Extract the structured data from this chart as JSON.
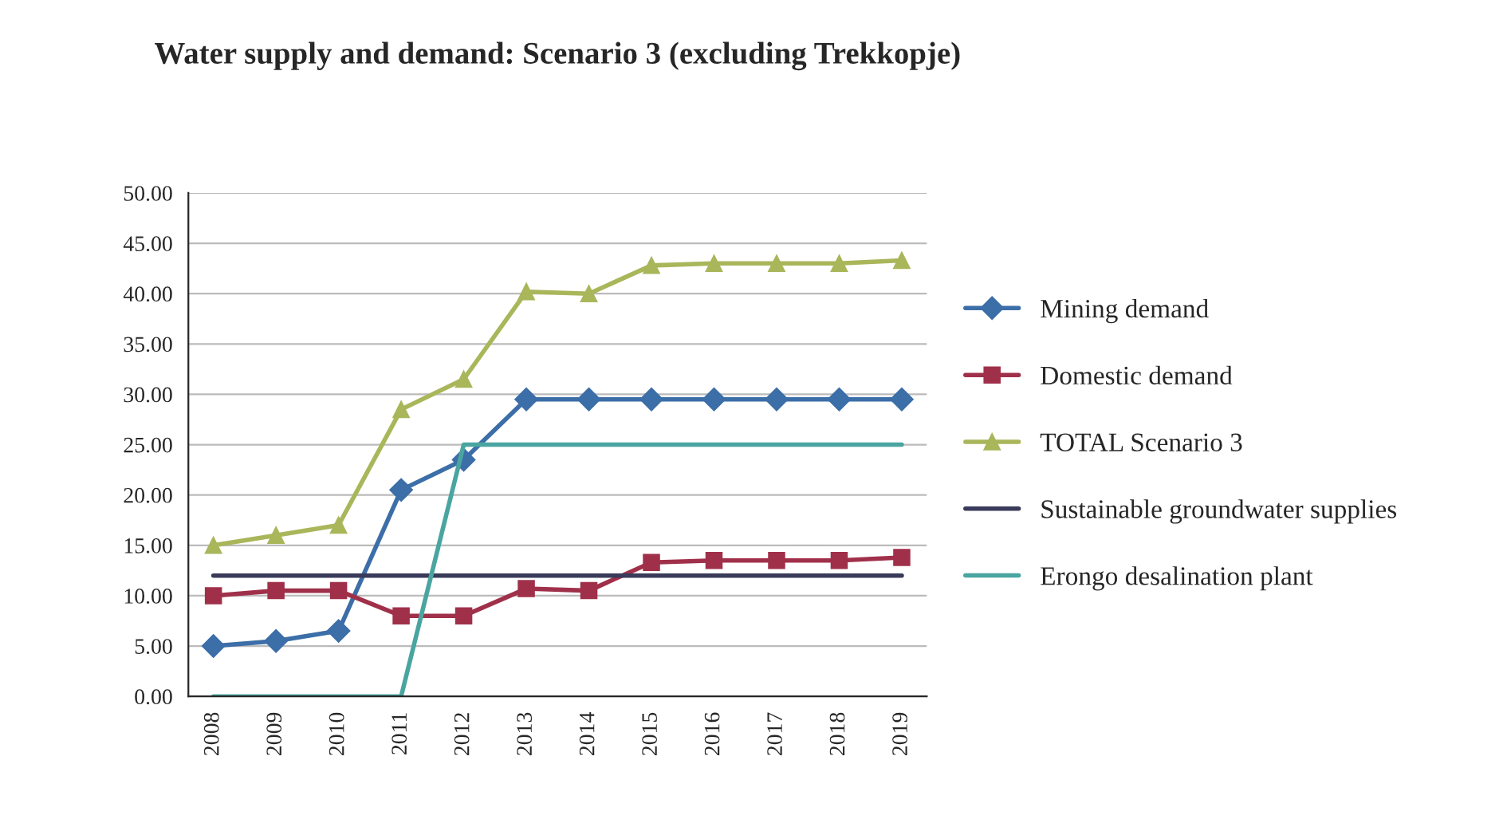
{
  "chart_data": {
    "type": "line",
    "title": "Water supply and demand: Scenario 3 (excluding Trekkopje)",
    "categories": [
      "2008",
      "2009",
      "2010",
      "2011",
      "2012",
      "2013",
      "2014",
      "2015",
      "2016",
      "2017",
      "2018",
      "2019"
    ],
    "series": [
      {
        "name": "Mining demand",
        "color": "#3c6ea8",
        "marker": "diamond",
        "values": [
          5,
          5.5,
          6.5,
          20.5,
          23.5,
          29.5,
          29.5,
          29.5,
          29.5,
          29.5,
          29.5,
          29.5
        ]
      },
      {
        "name": "Domestic demand",
        "color": "#a0304a",
        "marker": "square",
        "values": [
          10,
          10.5,
          10.5,
          8,
          8,
          10.7,
          10.5,
          13.3,
          13.5,
          13.5,
          13.5,
          13.8
        ]
      },
      {
        "name": "TOTAL Scenario 3",
        "color": "#a9b65a",
        "marker": "triangle",
        "values": [
          15,
          16,
          17,
          28.5,
          31.5,
          40.2,
          40,
          42.8,
          43,
          43,
          43,
          43.3
        ]
      },
      {
        "name": "Sustainable groundwater supplies",
        "color": "#3a3a5a",
        "marker": "none",
        "values": [
          12,
          12,
          12,
          12,
          12,
          12,
          12,
          12,
          12,
          12,
          12,
          12
        ]
      },
      {
        "name": "Erongo desalination plant",
        "color": "#4aa5a0",
        "marker": "none",
        "values": [
          0,
          0,
          0,
          0,
          25,
          25,
          25,
          25,
          25,
          25,
          25,
          25
        ]
      }
    ],
    "ylim": [
      0,
      50
    ],
    "yticks": [
      {
        "value": 0,
        "label": "0.00"
      },
      {
        "value": 5,
        "label": "5.00"
      },
      {
        "value": 10,
        "label": "10.00"
      },
      {
        "value": 15,
        "label": "15.00"
      },
      {
        "value": 20,
        "label": "20.00"
      },
      {
        "value": 25,
        "label": "25.00"
      },
      {
        "value": 30,
        "label": "30.00"
      },
      {
        "value": 35,
        "label": "35.00"
      },
      {
        "value": 40,
        "label": "40.00"
      },
      {
        "value": 45,
        "label": "45.00"
      },
      {
        "value": 50,
        "label": "50.00"
      }
    ],
    "grid": "y",
    "legend": "right"
  }
}
